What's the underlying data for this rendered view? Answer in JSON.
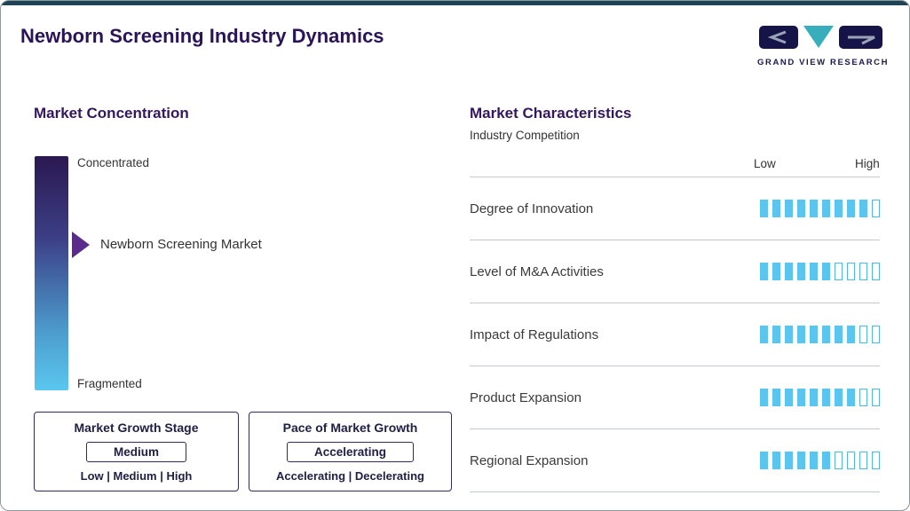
{
  "page": {
    "title": "Newborn Screening Industry Dynamics"
  },
  "logo": {
    "brand": "GRAND VIEW RESEARCH"
  },
  "market_concentration": {
    "heading": "Market Concentration",
    "scale_top": "Concentrated",
    "scale_bottom": "Fragmented",
    "marker_label": "Newborn Screening Market",
    "growth_stage": {
      "title": "Market Growth Stage",
      "value": "Medium",
      "options": "Low | Medium | High"
    },
    "growth_pace": {
      "title": "Pace of Market Growth",
      "value": "Accelerating",
      "options": "Accelerating | Decelerating"
    }
  },
  "market_characteristics": {
    "heading": "Market Characteristics",
    "subtitle": "Industry Competition",
    "scale_low": "Low",
    "scale_high": "High",
    "rows": [
      {
        "label": "Degree of Innovation",
        "filled": 9,
        "total": 10
      },
      {
        "label": "Level of M&A Activities",
        "filled": 6,
        "total": 10
      },
      {
        "label": "Impact of Regulations",
        "filled": 8,
        "total": 10
      },
      {
        "label": "Product Expansion",
        "filled": 8,
        "total": 10
      },
      {
        "label": "Regional Expansion",
        "filled": 6,
        "total": 10
      }
    ]
  },
  "colors": {
    "accent_purple": "#2a1457",
    "marker_purple": "#5a2b8c",
    "segment_blue": "#5ac5ee",
    "gradient_top": "#2b1850",
    "gradient_bottom": "#5ac7ef",
    "top_bar": "#1d4354"
  },
  "chart_data": {
    "type": "bar",
    "title": "Market Characteristics — Industry Competition",
    "categories": [
      "Degree of Innovation",
      "Level of M&A Activities",
      "Impact of Regulations",
      "Product Expansion",
      "Regional Expansion"
    ],
    "values": [
      9,
      6,
      8,
      8,
      6
    ],
    "scale": {
      "min_label": "Low",
      "max_label": "High",
      "total_segments": 10
    },
    "legend_position": "none",
    "concentration_scale": {
      "top": "Concentrated",
      "bottom": "Fragmented",
      "marker": "Newborn Screening Market"
    },
    "market_growth_stage": "Medium",
    "pace_of_market_growth": "Accelerating"
  }
}
